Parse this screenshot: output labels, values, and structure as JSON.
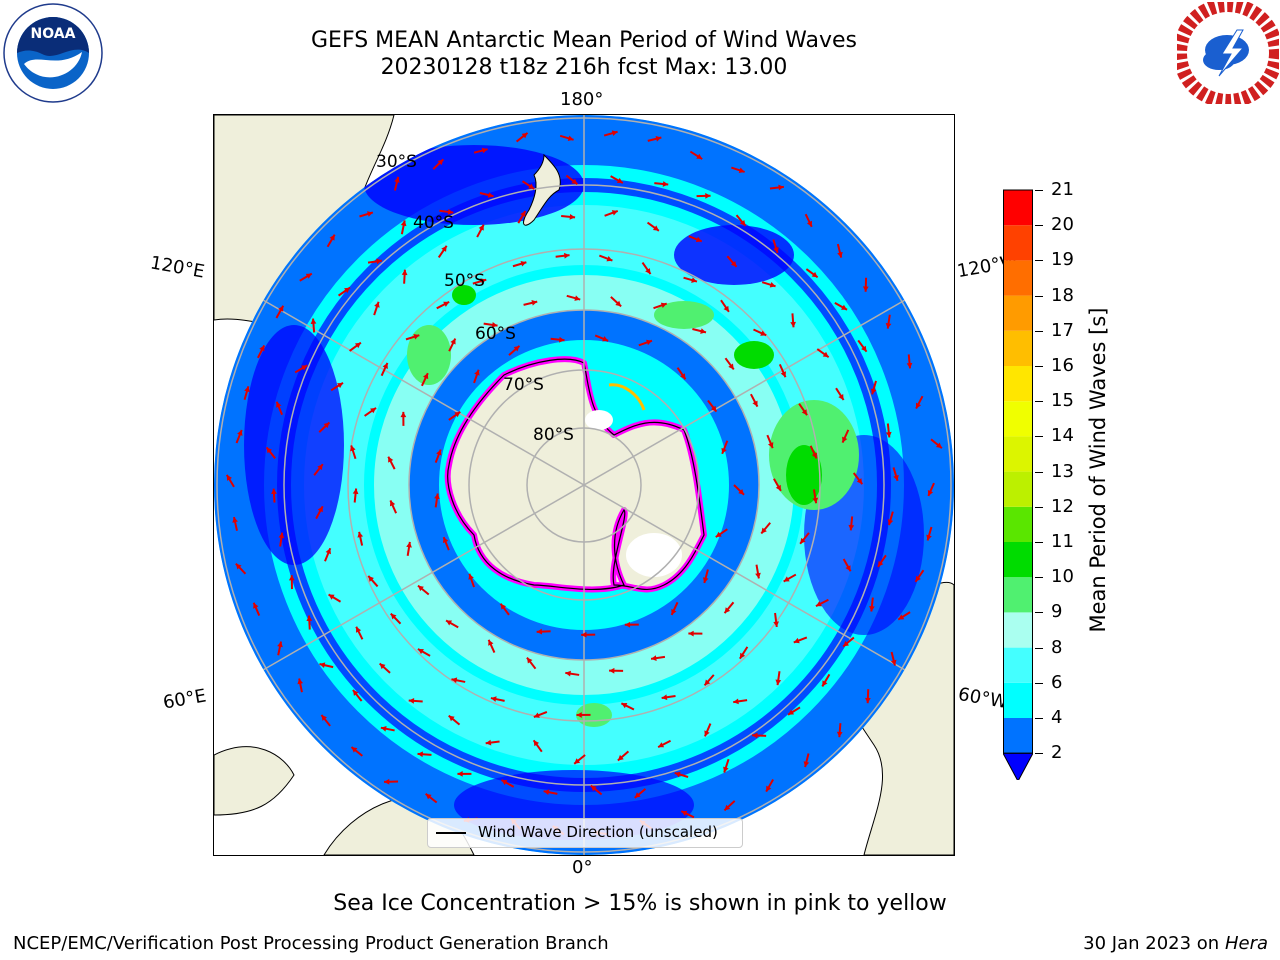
{
  "header": {
    "title_line1": "GEFS MEAN Antarctic Mean Period of Wind Waves",
    "title_line2": "20230128 t18z 216h fcst   Max: 13.00"
  },
  "logos": {
    "noaa": {
      "icon": "noaa-logo-icon",
      "text": "NOAA"
    },
    "nws": {
      "icon": "nws-logo-icon"
    }
  },
  "map": {
    "projection": "south-polar-stereographic",
    "longitude_labels": [
      "180°",
      "120°E",
      "120°W",
      "60°E",
      "60°W",
      "0°"
    ],
    "latitude_labels": [
      "30°S",
      "40°S",
      "50°S",
      "60°S",
      "70°S",
      "80°S"
    ],
    "colors": {
      "land": "#efefdb",
      "lt2": "#0000ff",
      "2to4": "#0073ff",
      "4to6": "#00ffff",
      "6to8": "#44ffff",
      "8to9": "#aafff0",
      "9to10": "#50f070",
      "10to11": "#00dc00",
      "sea_ice": "#ff00ff",
      "arrow": "#e00000",
      "grid": "#b0b0b0"
    }
  },
  "legend": {
    "text": "Wind Wave Direction (unscaled)"
  },
  "colorbar": {
    "label": "Mean Period of Wind Waves [s]",
    "ticks": [
      "21",
      "20",
      "19",
      "18",
      "17",
      "16",
      "15",
      "14",
      "13",
      "12",
      "11",
      "10",
      "9",
      "8",
      "6",
      "4",
      "2"
    ],
    "levels": [
      {
        "from": 2,
        "to": 4,
        "color": "#0073ff"
      },
      {
        "from": 4,
        "to": 6,
        "color": "#00ffff"
      },
      {
        "from": 6,
        "to": 8,
        "color": "#44ffff"
      },
      {
        "from": 8,
        "to": 9,
        "color": "#aafff0"
      },
      {
        "from": 9,
        "to": 10,
        "color": "#50f070"
      },
      {
        "from": 10,
        "to": 11,
        "color": "#00dc00"
      },
      {
        "from": 11,
        "to": 12,
        "color": "#5ae600"
      },
      {
        "from": 12,
        "to": 13,
        "color": "#bcf000"
      },
      {
        "from": 13,
        "to": 14,
        "color": "#dcf500"
      },
      {
        "from": 14,
        "to": 15,
        "color": "#f0ff00"
      },
      {
        "from": 15,
        "to": 16,
        "color": "#ffe600"
      },
      {
        "from": 16,
        "to": 17,
        "color": "#ffbe00"
      },
      {
        "from": 17,
        "to": 18,
        "color": "#ff9b00"
      },
      {
        "from": 18,
        "to": 19,
        "color": "#ff6e00"
      },
      {
        "from": 19,
        "to": 20,
        "color": "#ff4100"
      },
      {
        "from": 20,
        "to": 21,
        "color": "#ff0000"
      }
    ],
    "under_color": "#0000ff"
  },
  "caption": "Sea Ice Concentration > 15% is shown in pink to yellow",
  "footer": {
    "left": "NCEP/EMC/Verification Post Processing Product Generation Branch",
    "right_prefix": "30 Jan 2023 on ",
    "right_machine": "Hera"
  }
}
